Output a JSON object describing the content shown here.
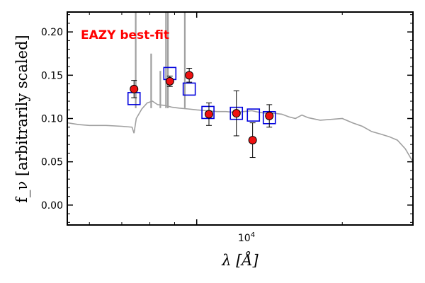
{
  "chart_data": {
    "type": "scatter",
    "title": "",
    "xlabel": "λ [Å]",
    "ylabel": "f_ν [arbitrarily scaled]",
    "xscale": "log",
    "xlim": [
      5400,
      28000
    ],
    "ylim": [
      -0.023,
      0.223
    ],
    "yticks": [
      "0.00",
      "0.05",
      "0.10",
      "0.15",
      "0.20"
    ],
    "ytick_values": [
      0.0,
      0.05,
      0.1,
      0.15,
      0.2
    ],
    "xtick_major_label": "10^4",
    "grid": false,
    "annotation": {
      "text": "EAZY best-fit",
      "color": "#ff0000"
    },
    "series": [
      {
        "kind": "template_spectrum",
        "color": "#a0a0a0",
        "x": [
          5400,
          5700,
          6000,
          6500,
          7000,
          7350,
          7420,
          7500,
          7700,
          7900,
          8100,
          8300,
          8600,
          8900,
          9200,
          9600,
          10000,
          10500,
          11000,
          11500,
          12000,
          12500,
          13000,
          13500,
          14000,
          14500,
          15000,
          15500,
          16000,
          16500,
          17000,
          18000,
          19000,
          20000,
          21000,
          22000,
          23000,
          24000,
          25000,
          26000,
          27000,
          28000
        ],
        "values": [
          0.095,
          0.093,
          0.092,
          0.092,
          0.091,
          0.09,
          0.083,
          0.1,
          0.111,
          0.118,
          0.12,
          0.116,
          0.115,
          0.113,
          0.112,
          0.111,
          0.11,
          0.109,
          0.108,
          0.108,
          0.107,
          0.108,
          0.109,
          0.107,
          0.106,
          0.106,
          0.105,
          0.102,
          0.1,
          0.104,
          0.101,
          0.098,
          0.099,
          0.1,
          0.095,
          0.091,
          0.085,
          0.082,
          0.079,
          0.075,
          0.065,
          0.05
        ],
        "emission_lines": [
          {
            "x": 7480,
            "peak": 0.223
          },
          {
            "x": 8050,
            "peak": 0.175
          },
          {
            "x": 8410,
            "peak": 0.155
          },
          {
            "x": 8640,
            "peak": 0.223
          },
          {
            "x": 8720,
            "peak": 0.223
          },
          {
            "x": 9450,
            "peak": 0.223
          }
        ]
      },
      {
        "kind": "model_photometry",
        "marker": "open_square",
        "color": "#0000dd",
        "x": [
          7420,
          8800,
          9650,
          10550,
          12080,
          13100,
          14130
        ],
        "values": [
          0.123,
          0.152,
          0.134,
          0.107,
          0.106,
          0.104,
          0.101
        ]
      },
      {
        "kind": "observed_photometry",
        "marker": "filled_circle",
        "color": "#ee1111",
        "x": [
          7420,
          8800,
          9650,
          10600,
          12080,
          13050,
          14130
        ],
        "values": [
          0.134,
          0.143,
          0.15,
          0.105,
          0.106,
          0.075,
          0.103
        ],
        "errors": [
          0.01,
          0.006,
          0.008,
          0.013,
          0.026,
          0.02,
          0.013
        ]
      }
    ]
  }
}
